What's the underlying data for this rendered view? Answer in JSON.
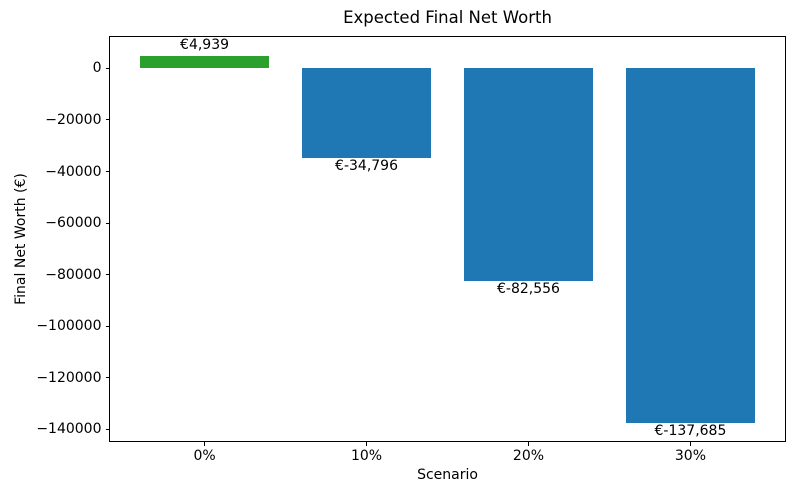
{
  "chart_data": {
    "type": "bar",
    "title": "Expected Final Net Worth",
    "xlabel": "Scenario",
    "ylabel": "Final Net Worth (€)",
    "categories": [
      "0%",
      "10%",
      "20%",
      "30%"
    ],
    "values": [
      4939,
      -34796,
      -82556,
      -137685
    ],
    "bar_labels": [
      "€4,939",
      "€-34,796",
      "€-82,556",
      "€-137,685"
    ],
    "bar_colors": [
      "#2ca02c",
      "#1f77b4",
      "#1f77b4",
      "#1f77b4"
    ],
    "yticks": [
      0,
      -20000,
      -40000,
      -60000,
      -80000,
      -100000,
      -120000,
      -140000
    ],
    "ytick_labels": [
      "0",
      "−20000",
      "−40000",
      "−60000",
      "−80000",
      "−100000",
      "−120000",
      "−140000"
    ],
    "xlim": [
      -0.59,
      3.59
    ],
    "ylim": [
      -145000,
      12600
    ],
    "bar_width": 0.8,
    "grid": false,
    "legend": "none",
    "background_color": "#ffffff",
    "text_color": "#000000"
  }
}
